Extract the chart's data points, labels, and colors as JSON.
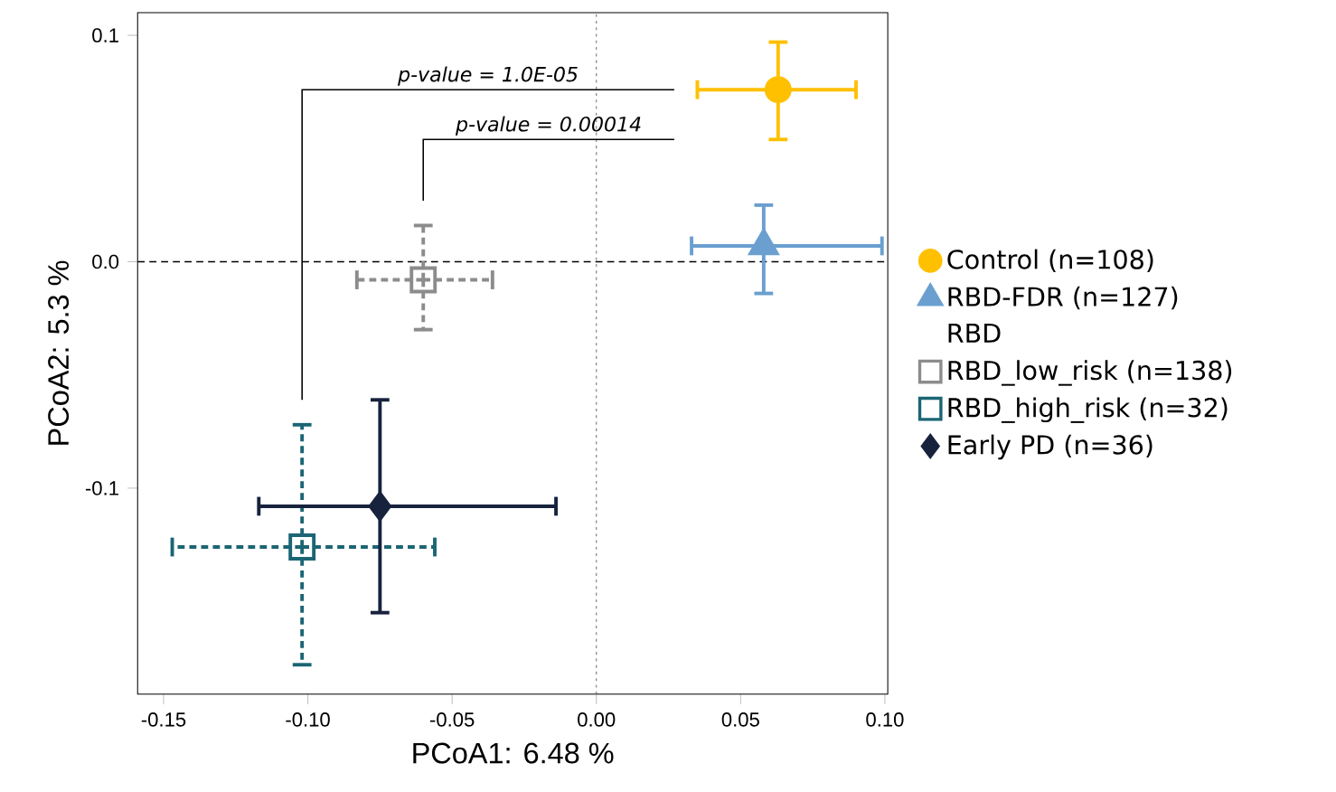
{
  "chart_data": {
    "type": "scatter",
    "xlabel": "PCoA1:  6.48 %",
    "ylabel": "PCoA2:  5.3 %",
    "legend_title": "RBD",
    "xlim": [
      -0.159,
      0.101
    ],
    "ylim": [
      -0.191,
      0.11
    ],
    "xticks": [
      {
        "value": -0.15,
        "label": "-0.15"
      },
      {
        "value": -0.1,
        "label": "-0.10"
      },
      {
        "value": -0.05,
        "label": "-0.05"
      },
      {
        "value": 0,
        "label": "0.00"
      },
      {
        "value": 0.05,
        "label": "0.05"
      },
      {
        "value": 0.1,
        "label": "0.10"
      }
    ],
    "yticks": [
      {
        "value": -0.1,
        "label": "-0.1"
      },
      {
        "value": 0,
        "label": "0.0"
      },
      {
        "value": 0.1,
        "label": "0.1"
      }
    ],
    "grid": false,
    "legend": "right",
    "ref_lines": [
      {
        "axis": "x",
        "value": 0,
        "line_style": "dotted",
        "color": "#707070"
      },
      {
        "axis": "y",
        "value": 0,
        "line_style": "dashed",
        "color": "#000000"
      }
    ],
    "annotations": [
      "p-value = 1.0E-05",
      "p-value = 0.00014"
    ],
    "series": [
      {
        "name": "Control (n=108)",
        "color": "#ffc000",
        "x": [
          0.063
        ],
        "values": [
          0.076
        ],
        "xerrors": [
          [
            0.035,
            0.09
          ]
        ],
        "errors": [
          [
            0.054,
            0.097
          ]
        ],
        "marker": "circle",
        "line_style": "solid"
      },
      {
        "name": "RBD-FDR (n=127)",
        "color": "#6a9fd0",
        "x": [
          0.058
        ],
        "values": [
          0.007
        ],
        "xerrors": [
          [
            0.033,
            0.099
          ]
        ],
        "errors": [
          [
            -0.014,
            0.025
          ]
        ],
        "marker": "triangle",
        "line_style": "solid"
      },
      {
        "name": "RBD_low_risk (n=138)",
        "color": "#8c8c8c",
        "x": [
          -0.06
        ],
        "values": [
          -0.008
        ],
        "xerrors": [
          [
            -0.083,
            -0.036
          ]
        ],
        "errors": [
          [
            -0.03,
            0.016
          ]
        ],
        "marker": "square",
        "line_style": "dashed"
      },
      {
        "name": "RBD_high_risk (n=32)",
        "color": "#1b6574",
        "x": [
          -0.102
        ],
        "values": [
          -0.126
        ],
        "xerrors": [
          [
            -0.147,
            -0.056
          ]
        ],
        "errors": [
          [
            -0.178,
            -0.072
          ]
        ],
        "marker": "square",
        "line_style": "dashed"
      },
      {
        "name": "Early PD (n=36)",
        "color": "#17223d",
        "x": [
          -0.075
        ],
        "values": [
          -0.108
        ],
        "xerrors": [
          [
            -0.117,
            -0.014
          ]
        ],
        "errors": [
          [
            -0.155,
            -0.061
          ]
        ],
        "marker": "diamond",
        "line_style": "solid"
      }
    ]
  }
}
